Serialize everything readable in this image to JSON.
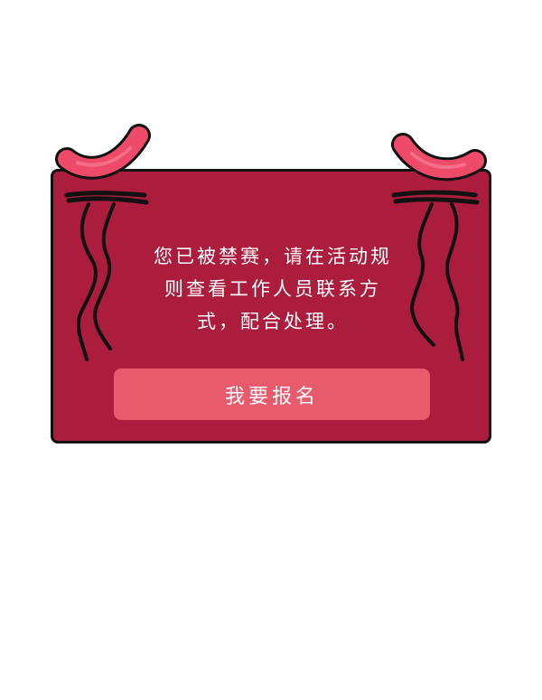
{
  "dialog": {
    "message": "您已被禁赛，请在活动规则查看工作人员联系方式，配合处理。",
    "button_label": "我要报名"
  },
  "colors": {
    "card_background": "#ac1c3d",
    "button_background": "#e85b6d",
    "sausage": "#ee4b6a",
    "outline": "#111111",
    "text": "#ffffff"
  },
  "icons": [
    "left-hanging-sausage-icon",
    "right-hanging-sausage-icon",
    "left-rope-icon",
    "right-rope-icon"
  ]
}
